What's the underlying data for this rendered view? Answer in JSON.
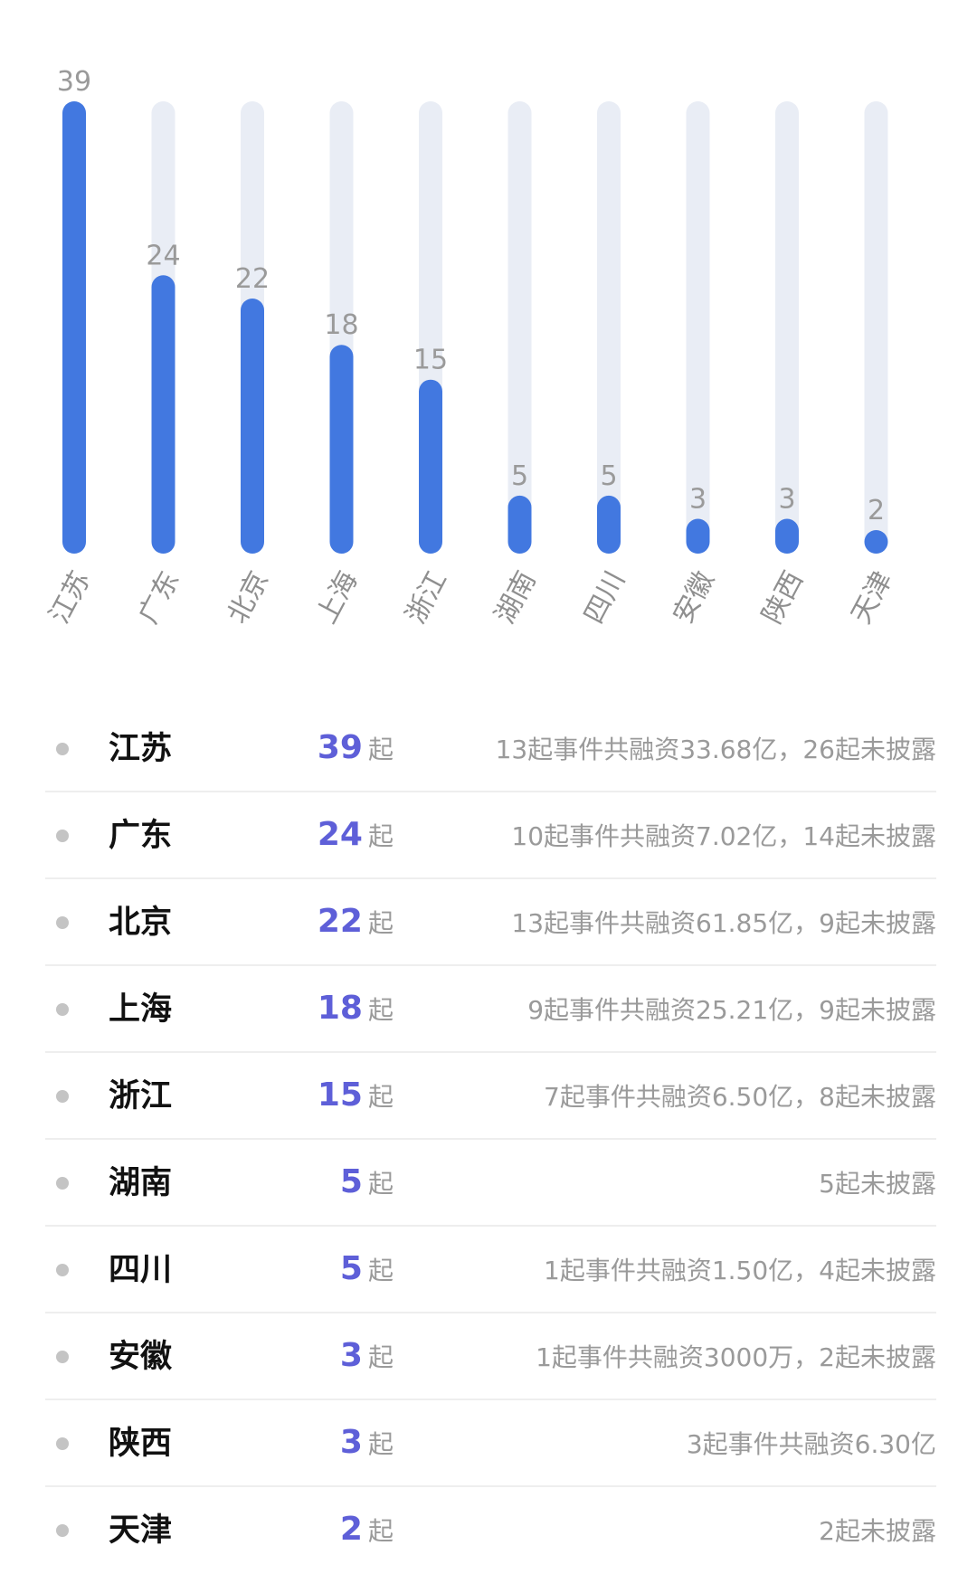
{
  "chart_data": {
    "type": "bar",
    "categories": [
      "江苏",
      "广东",
      "北京",
      "上海",
      "浙江",
      "湖南",
      "四川",
      "安徽",
      "陕西",
      "天津"
    ],
    "values": [
      39,
      24,
      22,
      18,
      15,
      5,
      5,
      3,
      3,
      2
    ],
    "ylim": [
      0,
      39
    ],
    "grid": false,
    "legend": "none",
    "colors": {
      "bar": "#4278e0",
      "track": "#e9edf5"
    }
  },
  "list": {
    "unit": "起",
    "rows": [
      {
        "province": "江苏",
        "count": "39",
        "note": "13起事件共融资33.68亿，26起未披露"
      },
      {
        "province": "广东",
        "count": "24",
        "note": "10起事件共融资7.02亿，14起未披露"
      },
      {
        "province": "北京",
        "count": "22",
        "note": "13起事件共融资61.85亿，9起未披露"
      },
      {
        "province": "上海",
        "count": "18",
        "note": "9起事件共融资25.21亿，9起未披露"
      },
      {
        "province": "浙江",
        "count": "15",
        "note": "7起事件共融资6.50亿，8起未披露"
      },
      {
        "province": "湖南",
        "count": "5",
        "note": "5起未披露"
      },
      {
        "province": "四川",
        "count": "5",
        "note": "1起事件共融资1.50亿，4起未披露"
      },
      {
        "province": "安徽",
        "count": "3",
        "note": "1起事件共融资3000万，2起未披露"
      },
      {
        "province": "陕西",
        "count": "3",
        "note": "3起事件共融资6.30亿"
      },
      {
        "province": "天津",
        "count": "2",
        "note": "2起未披露"
      }
    ],
    "colors": {
      "count": "#5e5fd8",
      "province": "#111111",
      "muted": "#9a9a9a"
    }
  }
}
